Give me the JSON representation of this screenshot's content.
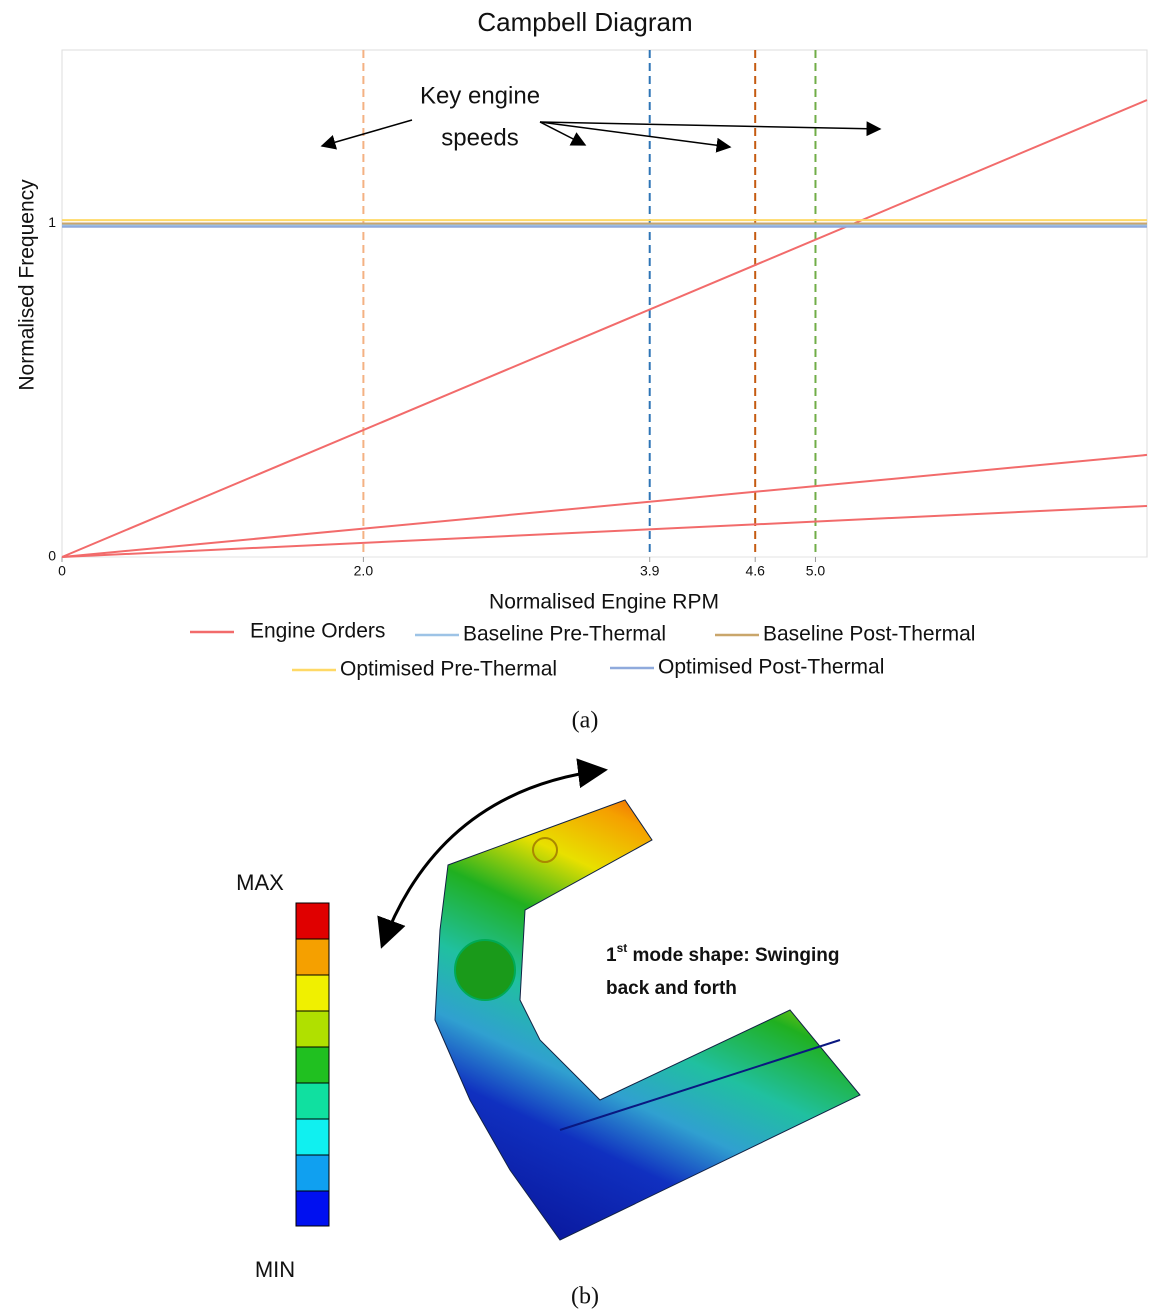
{
  "chart_data": {
    "type": "line",
    "title": "Campbell Diagram",
    "x_label": "Normalised Engine RPM",
    "y_label": "Normalised Frequency",
    "x": [
      0,
      7.2
    ],
    "series": [
      {
        "name": "Engine Orders",
        "color": "#f26b6b",
        "values": [
          [
            0,
            1.37
          ],
          [
            0,
            0.306
          ],
          [
            0,
            0.153
          ]
        ]
      },
      {
        "name": "Baseline Pre-Thermal",
        "color": "#9dc3e6",
        "values": [
          0.995,
          0.995
        ]
      },
      {
        "name": "Baseline Post-Thermal",
        "color": "#c9a66b",
        "values": [
          1.0,
          1.0
        ]
      },
      {
        "name": "Optimised Pre-Thermal",
        "color": "#ffd966",
        "values": [
          1.01,
          1.01
        ]
      },
      {
        "name": "Optimised Post-Thermal",
        "color": "#8faadc",
        "values": [
          0.99,
          0.99
        ]
      }
    ],
    "key_speeds": [
      {
        "x": 2,
        "color": "#f4b183"
      },
      {
        "x": 3.9,
        "color": "#2e75b6"
      },
      {
        "x": 4.6,
        "color": "#c55a11"
      },
      {
        "x": 5,
        "color": "#70ad47"
      }
    ],
    "annotation": [
      "Key engine",
      "speeds"
    ],
    "xlim": [
      0,
      7.2
    ],
    "ylim": [
      0,
      1.52
    ],
    "xticks": [
      0,
      {
        "value": 2,
        "label": "2.0"
      },
      3.9,
      4.6,
      {
        "value": 5,
        "label": "5.0"
      }
    ],
    "yticks": [
      0,
      1
    ],
    "grid": true
  },
  "figure": {
    "caption_a": "(a)",
    "caption_b": "(b)",
    "legend_max": "MAX",
    "legend_min": "MIN",
    "mode_note": {
      "number": "1",
      "suffix": "st",
      "line1": " mode shape: Swinging",
      "line2": "back and forth"
    }
  }
}
